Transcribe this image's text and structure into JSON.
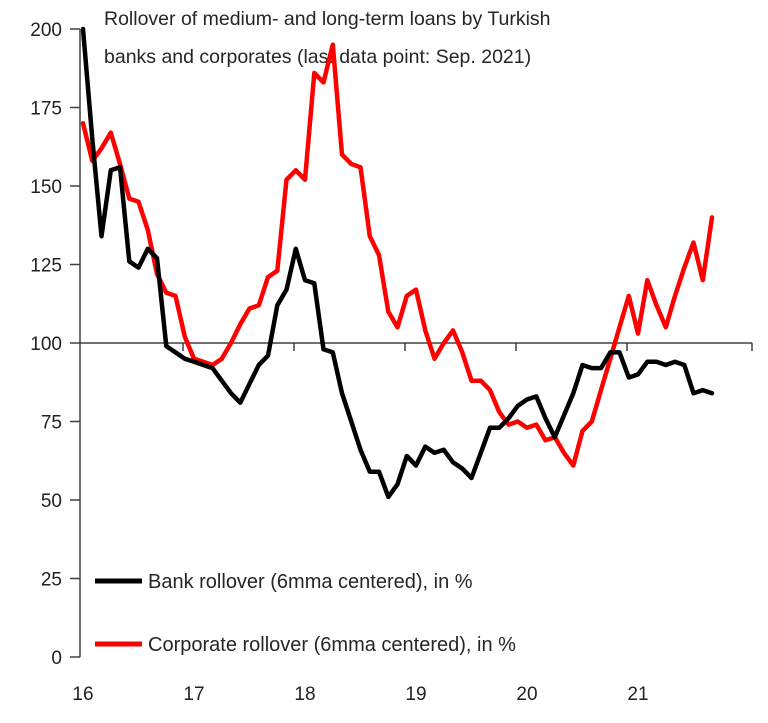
{
  "chart_data": {
    "type": "line",
    "title": "Rollover of medium- and long-term loans by Turkish banks and corporates (last data point: Sep. 2021)",
    "title_lines": [
      "Rollover of medium- and long-term loans by Turkish",
      "banks and corporates (last data point: Sep. 2021)"
    ],
    "xlabel": "",
    "ylabel": "",
    "ylim": [
      0,
      200
    ],
    "yticks": [
      0,
      25,
      50,
      75,
      100,
      125,
      150,
      175,
      200
    ],
    "x_tick_labels": [
      "16",
      "17",
      "18",
      "19",
      "20",
      "21"
    ],
    "x_axis_crosses_at": 100,
    "grid": false,
    "legend_position": "lower-left inside",
    "frequency": "monthly",
    "x_start": "2016-01",
    "x_end": "2021-09",
    "series": [
      {
        "name": "Bank rollover (6mma centered), in %",
        "color": "#000000",
        "values": [
          200,
          165,
          134,
          155,
          156,
          126,
          124,
          130,
          127,
          99,
          97,
          95,
          94,
          93,
          92,
          88,
          84,
          81,
          87,
          93,
          96,
          112,
          117,
          130,
          120,
          119,
          98,
          97,
          84,
          75,
          66,
          59,
          59,
          51,
          55,
          64,
          61,
          67,
          65,
          66,
          62,
          60,
          57,
          65,
          73,
          73,
          76,
          80,
          82,
          83,
          76,
          70,
          77,
          84,
          93,
          92,
          92,
          97,
          97,
          89,
          90,
          94,
          94,
          93,
          94,
          93,
          84,
          85,
          84
        ]
      },
      {
        "name": "Corporate rollover (6mma centered), in %",
        "color": "#ff0000",
        "values": [
          170,
          158,
          162,
          167,
          157,
          146,
          145,
          136,
          122,
          116,
          115,
          102,
          95,
          94,
          93,
          95,
          100,
          106,
          111,
          112,
          121,
          123,
          152,
          155,
          152,
          186,
          183,
          195,
          160,
          157,
          156,
          134,
          128,
          110,
          105,
          115,
          117,
          104,
          95,
          100,
          104,
          97,
          88,
          88,
          85,
          78,
          74,
          75,
          73,
          74,
          69,
          70,
          65,
          61,
          72,
          75,
          85,
          95,
          105,
          115,
          103,
          120,
          112,
          105,
          115,
          124,
          132,
          120,
          140
        ]
      }
    ]
  },
  "legend": {
    "bank_label": "Bank rollover (6mma centered), in %",
    "corporate_label": "Corporate rollover (6mma centered), in %"
  }
}
